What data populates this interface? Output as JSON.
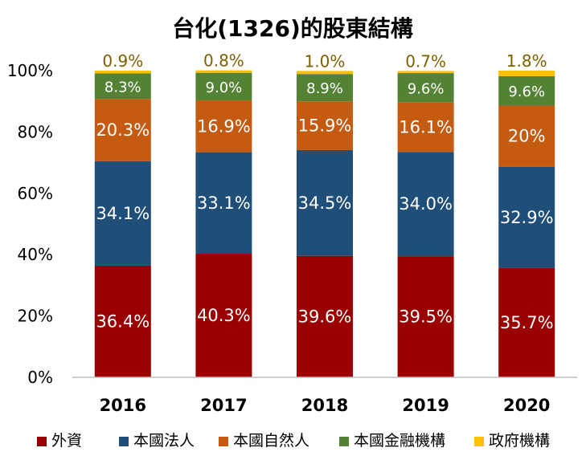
{
  "chart_data": {
    "type": "bar",
    "stacked": true,
    "title": "台化(1326)的股東結構",
    "xlabel": "",
    "ylabel": "",
    "ylim": [
      0,
      100
    ],
    "y_ticks": [
      "0%",
      "20%",
      "40%",
      "60%",
      "80%",
      "100%"
    ],
    "categories": [
      "2016",
      "2017",
      "2018",
      "2019",
      "2020"
    ],
    "legend_position": "bottom",
    "grid": false,
    "series": [
      {
        "name": "外資",
        "color": "#9B0000",
        "values": [
          36.4,
          40.3,
          39.6,
          39.5,
          35.7
        ],
        "labels": [
          "36.4%",
          "40.3%",
          "39.6%",
          "39.5%",
          "35.7%"
        ]
      },
      {
        "name": "本國法人",
        "color": "#1F4E79",
        "values": [
          34.1,
          33.1,
          34.5,
          34.0,
          32.9
        ],
        "labels": [
          "34.1%",
          "33.1%",
          "34.5%",
          "34.0%",
          "32.9%"
        ]
      },
      {
        "name": "本國自然人",
        "color": "#C55A11",
        "values": [
          20.3,
          16.9,
          15.9,
          16.1,
          20.0
        ],
        "labels": [
          "20.3%",
          "16.9%",
          "15.9%",
          "16.1%",
          "20%"
        ]
      },
      {
        "name": "本國金融機構",
        "color": "#548235",
        "values": [
          8.3,
          9.0,
          8.9,
          9.6,
          9.6
        ],
        "labels": [
          "8.3%",
          "9.0%",
          "8.9%",
          "9.6%",
          "9.6%"
        ]
      },
      {
        "name": "政府機構",
        "color": "#FFC000",
        "values": [
          0.9,
          0.8,
          1.0,
          0.7,
          1.8
        ],
        "labels": [
          "0.9%",
          "0.8%",
          "1.0%",
          "0.7%",
          "1.8%"
        ]
      }
    ]
  }
}
